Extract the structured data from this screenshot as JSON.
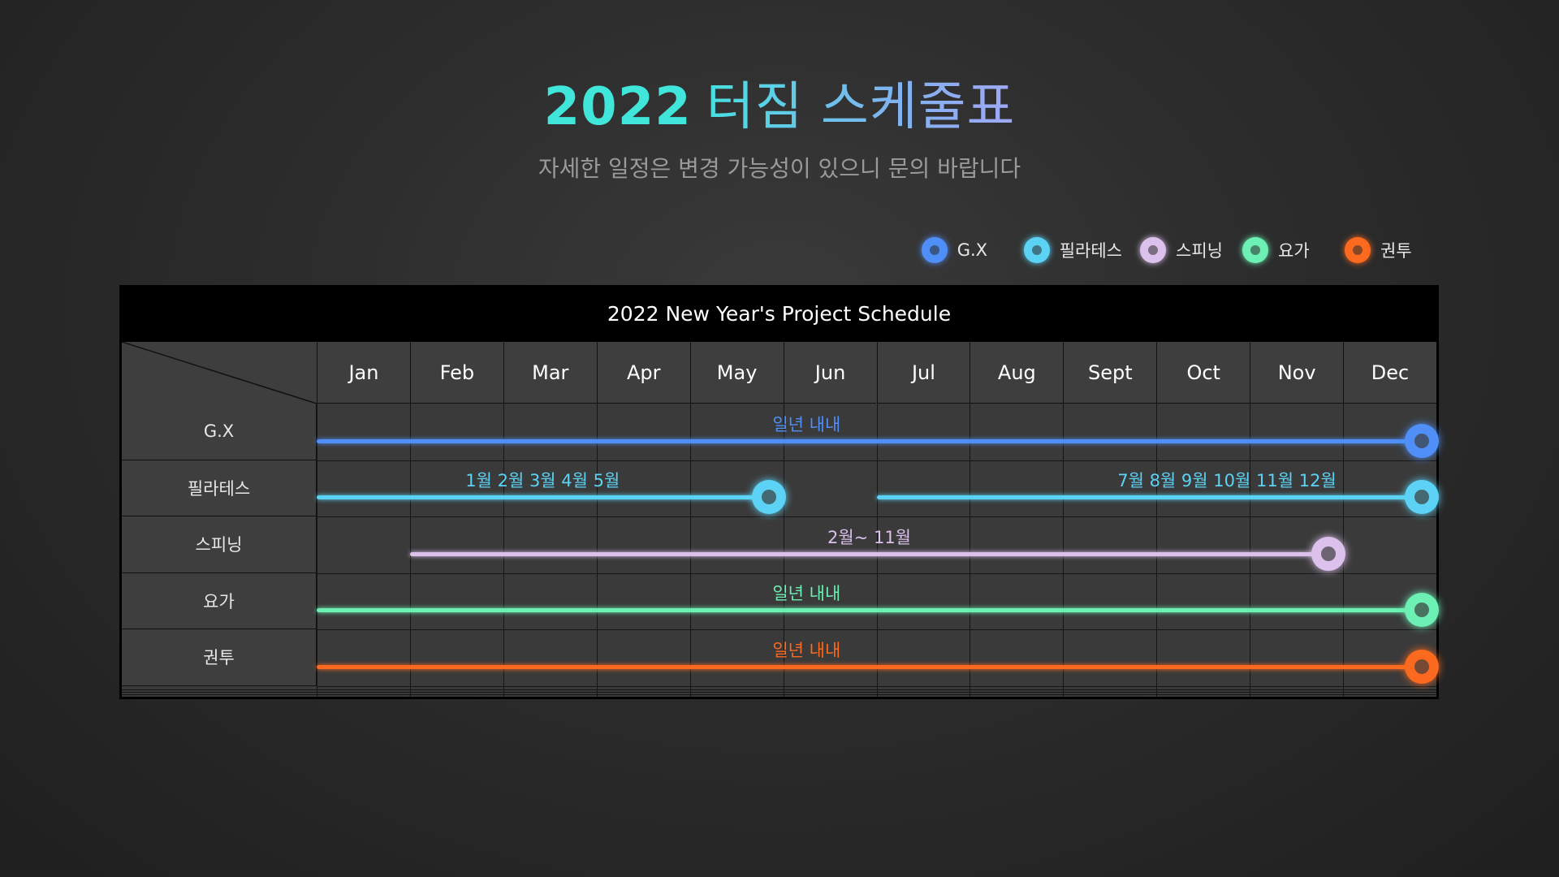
{
  "title": {
    "year": "2022",
    "rest": "터짐  스케줄표"
  },
  "subtitle": "자세한 일정은 변경 가능성이 있으니 문의 바랍니다",
  "legend": [
    {
      "label": "G.X",
      "color": "#4f8ff7"
    },
    {
      "label": "필라테스",
      "color": "#5cd3f5"
    },
    {
      "label": "스피닝",
      "color": "#dcc1ec"
    },
    {
      "label": "요가",
      "color": "#6cf0b4"
    },
    {
      "label": "권투",
      "color": "#fb6a1f"
    }
  ],
  "table": {
    "title": "2022 New Year's Project Schedule",
    "months": [
      "Jan",
      "Feb",
      "Mar",
      "Apr",
      "May",
      "Jun",
      "Jul",
      "Aug",
      "Sept",
      "Oct",
      "Nov",
      "Dec"
    ],
    "rows": [
      {
        "label": "G.X",
        "color": "#4f8ff7",
        "segments": [
          {
            "start_month": 1,
            "end_month": 12,
            "label": "일년 내내"
          }
        ]
      },
      {
        "label": "필라테스",
        "color": "#5cd3f5",
        "segments": [
          {
            "start_month": 1,
            "end_month": 5,
            "label": "1월 2월 3월 4월 5월"
          },
          {
            "start_month": 7,
            "end_month": 12,
            "label": "7월 8월 9월 10월 11월 12월"
          }
        ]
      },
      {
        "label": "스피닝",
        "color": "#dcc1ec",
        "segments": [
          {
            "start_month": 2,
            "end_month": 11,
            "label": "2월~ 11월"
          }
        ]
      },
      {
        "label": "요가",
        "color": "#6cf0b4",
        "segments": [
          {
            "start_month": 1,
            "end_month": 12,
            "label": "일년 내내"
          }
        ]
      },
      {
        "label": "권투",
        "color": "#fb6a1f",
        "segments": [
          {
            "start_month": 1,
            "end_month": 12,
            "label": "일년 내내"
          }
        ]
      }
    ]
  }
}
